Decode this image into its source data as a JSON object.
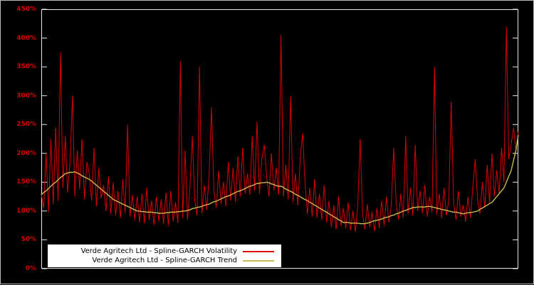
{
  "chart_data": {
    "type": "line",
    "title": "",
    "units": "%",
    "ylim": [
      0,
      450
    ],
    "y_tick_labels": [
      "0%",
      "50%",
      "100%",
      "150%",
      "200%",
      "250%",
      "300%",
      "350%",
      "400%",
      "450%"
    ],
    "x_tick_labels": [],
    "grid": false,
    "background_color": "#000000",
    "border_color": "#e8e8e8",
    "axis_label_color": "#d40000",
    "legend_position": "bottom-left-inside",
    "legend_background": "#ffffff",
    "series": [
      {
        "name": "Verde Agritech Ltd - Spline-GARCH Volatility",
        "color": "#dc0000",
        "values": [
          130,
          105,
          200,
          98,
          225,
          112,
          245,
          118,
          375,
          140,
          230,
          132,
          185,
          300,
          125,
          205,
          138,
          225,
          120,
          185,
          165,
          118,
          210,
          108,
          175,
          122,
          145,
          100,
          160,
          95,
          150,
          92,
          135,
          88,
          155,
          96,
          250,
          90,
          128,
          85,
          125,
          80,
          130,
          78,
          140,
          84,
          118,
          76,
          125,
          82,
          120,
          78,
          132,
          75,
          135,
          82,
          115,
          79,
          360,
          88,
          205,
          85,
          140,
          230,
          118,
          92,
          350,
          96,
          145,
          102,
          160,
          280,
          135,
          105,
          170,
          112,
          150,
          108,
          185,
          118,
          175,
          115,
          195,
          125,
          210,
          130,
          165,
          128,
          230,
          135,
          255,
          130,
          190,
          215,
          160,
          125,
          200,
          135,
          175,
          128,
          405,
          125,
          180,
          120,
          300,
          115,
          165,
          110,
          190,
          235,
          150,
          95,
          140,
          90,
          155,
          88,
          130,
          85,
          145,
          80,
          118,
          72,
          110,
          68,
          125,
          74,
          105,
          70,
          115,
          66,
          100,
          64,
          108,
          225,
          95,
          68,
          112,
          72,
          98,
          65,
          105,
          70,
          118,
          75,
          125,
          80,
          110,
          210,
          115,
          85,
          130,
          88,
          230,
          95,
          140,
          92,
          215,
          100,
          135,
          96,
          145,
          90,
          125,
          98,
          350,
          94,
          130,
          88,
          140,
          92,
          120,
          290,
          115,
          85,
          135,
          90,
          110,
          82,
          125,
          88,
          140,
          190,
          120,
          95,
          150,
          105,
          180,
          115,
          200,
          125,
          170,
          130,
          210,
          150,
          420,
          190,
          215,
          245,
          205,
          238
        ]
      },
      {
        "name": "Verde Agritech Ltd - Spline-GARCH Trend",
        "color": "#c9bb4f",
        "values": [
          128,
          132,
          135,
          139,
          143,
          147,
          150,
          154,
          158,
          161,
          165,
          166,
          167,
          167,
          168,
          166,
          164,
          161,
          159,
          157,
          155,
          152,
          148,
          145,
          141,
          138,
          134,
          131,
          127,
          124,
          120,
          118,
          116,
          114,
          112,
          110,
          108,
          106,
          104,
          102,
          100,
          100,
          99,
          99,
          98,
          98,
          98,
          97,
          97,
          96,
          96,
          96,
          97,
          97,
          98,
          98,
          98,
          99,
          99,
          100,
          100,
          101,
          102,
          104,
          105,
          106,
          107,
          108,
          110,
          111,
          112,
          114,
          116,
          117,
          119,
          121,
          123,
          125,
          126,
          128,
          130,
          132,
          134,
          135,
          137,
          139,
          141,
          143,
          144,
          146,
          148,
          148,
          149,
          149,
          150,
          149,
          147,
          146,
          144,
          143,
          143,
          141,
          138,
          136,
          134,
          132,
          129,
          127,
          125,
          122,
          120,
          118,
          115,
          113,
          110,
          108,
          105,
          103,
          100,
          98,
          95,
          93,
          90,
          88,
          85,
          83,
          80,
          80,
          80,
          79,
          79,
          79,
          79,
          78,
          78,
          78,
          79,
          80,
          82,
          83,
          84,
          85,
          86,
          88,
          89,
          90,
          92,
          93,
          95,
          96,
          98,
          100,
          101,
          103,
          104,
          106,
          106,
          107,
          107,
          107,
          107,
          108,
          108,
          107,
          106,
          105,
          104,
          103,
          102,
          101,
          100,
          99,
          98,
          98,
          97,
          96,
          95,
          96,
          97,
          97,
          98,
          99,
          100,
          103,
          105,
          108,
          110,
          113,
          115,
          120,
          125,
          130,
          135,
          140,
          150,
          160,
          170,
          188,
          205,
          232
        ]
      }
    ]
  }
}
